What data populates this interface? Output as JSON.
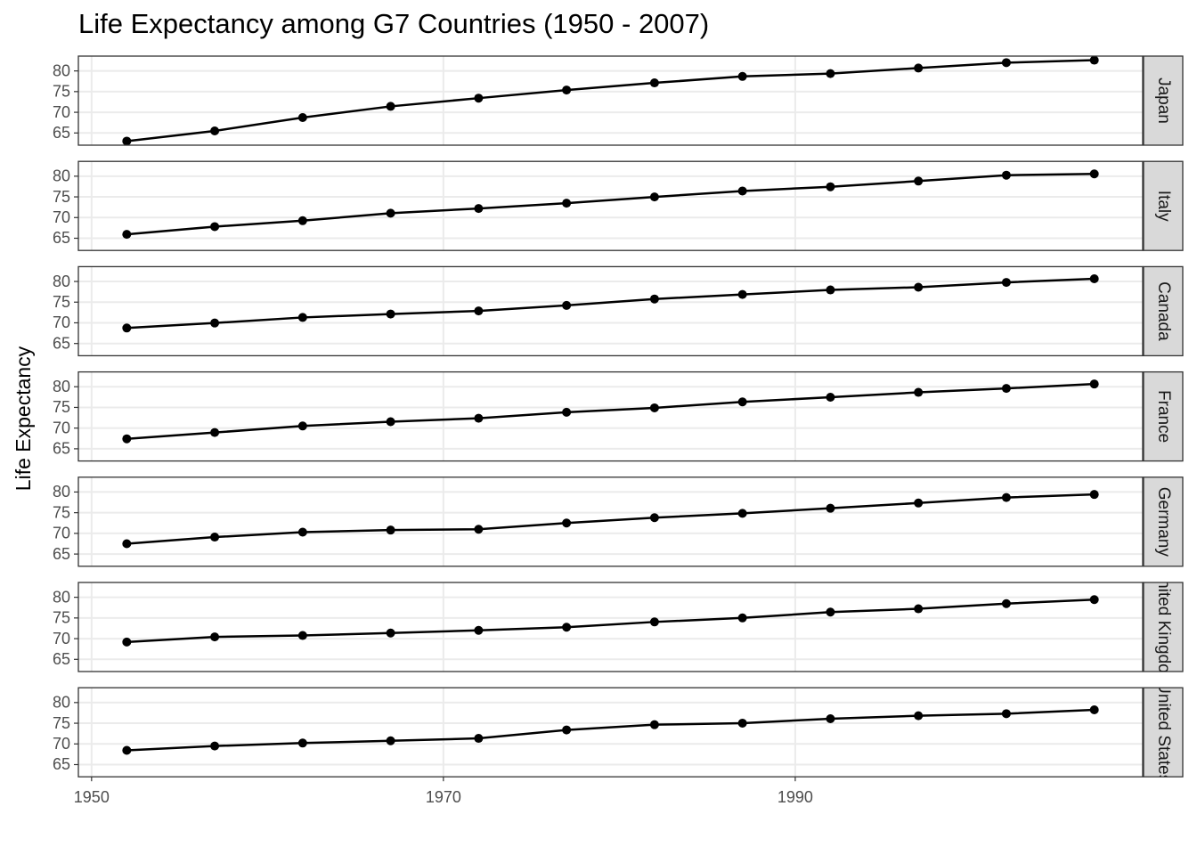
{
  "chart_data": {
    "type": "line",
    "title": "Life Expectancy among G7 Countries (1950 - 2007)",
    "y_label": "Life Expectancy",
    "x": [
      1952,
      1957,
      1962,
      1967,
      1972,
      1977,
      1982,
      1987,
      1992,
      1997,
      2002,
      2007
    ],
    "xlim": [
      1949.25,
      2009.75
    ],
    "xticks": [
      1950,
      1970,
      1990
    ],
    "ylim": [
      62.05,
      83.58
    ],
    "yticks": [
      65,
      70,
      75,
      80
    ],
    "grid": true,
    "color": "#000000",
    "series": [
      {
        "name": "Japan",
        "values": [
          63.03,
          65.5,
          68.73,
          71.43,
          73.42,
          75.38,
          77.11,
          78.67,
          79.36,
          80.69,
          82.0,
          82.6
        ]
      },
      {
        "name": "Italy",
        "values": [
          65.94,
          67.81,
          69.24,
          71.06,
          72.19,
          73.48,
          74.98,
          76.42,
          77.44,
          78.82,
          80.24,
          80.55
        ]
      },
      {
        "name": "Canada",
        "values": [
          68.75,
          69.96,
          71.3,
          72.13,
          72.88,
          74.21,
          75.76,
          76.86,
          77.95,
          78.61,
          79.77,
          80.65
        ]
      },
      {
        "name": "France",
        "values": [
          67.41,
          68.93,
          70.51,
          71.55,
          72.38,
          73.83,
          74.89,
          76.34,
          77.46,
          78.64,
          79.59,
          80.66
        ]
      },
      {
        "name": "Germany",
        "values": [
          67.5,
          69.1,
          70.3,
          70.8,
          71.0,
          72.5,
          73.8,
          74.85,
          76.07,
          77.34,
          78.67,
          79.41
        ]
      },
      {
        "name": "United Kingdom",
        "values": [
          69.18,
          70.42,
          70.76,
          71.36,
          72.01,
          72.76,
          74.04,
          75.01,
          76.42,
          77.22,
          78.47,
          79.43
        ]
      },
      {
        "name": "United States",
        "values": [
          68.44,
          69.49,
          70.21,
          70.76,
          71.34,
          73.38,
          74.65,
          75.02,
          76.09,
          76.81,
          77.31,
          78.24
        ]
      }
    ]
  }
}
